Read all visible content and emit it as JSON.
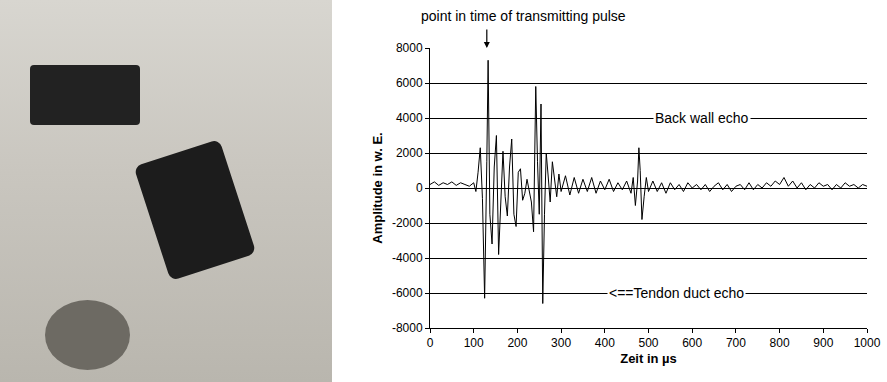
{
  "chart_data": {
    "type": "line",
    "x_label": "Zeit in µs",
    "y_label": "Amplitude in w. E.",
    "annotations": [
      {
        "text": "point in time of transmitting pulse",
        "x": 130,
        "y": 8000
      },
      {
        "text": "Back wall echo",
        "x": 623,
        "y": 4000
      },
      {
        "text": "<==Tendon duct echo",
        "x": 565,
        "y": -6000
      }
    ],
    "x": [
      0,
      10,
      20,
      30,
      40,
      50,
      60,
      70,
      80,
      90,
      100,
      105,
      110,
      115,
      120,
      125,
      130,
      133,
      137,
      142,
      147,
      152,
      157,
      162,
      167,
      172,
      177,
      182,
      187,
      192,
      197,
      202,
      207,
      212,
      217,
      222,
      227,
      232,
      237,
      242,
      246,
      250,
      254,
      258,
      262,
      266,
      270,
      275,
      280,
      285,
      290,
      295,
      300,
      310,
      320,
      330,
      340,
      350,
      360,
      370,
      380,
      390,
      400,
      410,
      420,
      430,
      440,
      450,
      460,
      465,
      470,
      475,
      478,
      481,
      485,
      490,
      495,
      500,
      510,
      520,
      530,
      540,
      550,
      560,
      570,
      580,
      590,
      600,
      610,
      620,
      630,
      640,
      650,
      660,
      670,
      680,
      690,
      700,
      710,
      720,
      730,
      740,
      750,
      760,
      770,
      780,
      790,
      800,
      810,
      820,
      830,
      840,
      850,
      860,
      870,
      880,
      890,
      900,
      910,
      920,
      930,
      940,
      950,
      960,
      970,
      980,
      990,
      1000
    ],
    "values": [
      200,
      350,
      150,
      300,
      200,
      350,
      150,
      300,
      200,
      100,
      300,
      -200,
      900,
      2300,
      -600,
      -6300,
      1500,
      7300,
      -1500,
      -3200,
      1200,
      3000,
      -3800,
      -1000,
      2100,
      -500,
      -1600,
      1200,
      2800,
      -1500,
      -2200,
      900,
      1100,
      -700,
      -300,
      500,
      -200,
      -800,
      -2500,
      5800,
      1500,
      -1500,
      4800,
      -6600,
      -1500,
      2000,
      800,
      -800,
      1500,
      300,
      -500,
      800,
      -200,
      700,
      -400,
      600,
      -300,
      500,
      -200,
      600,
      -300,
      400,
      -100,
      500,
      -200,
      300,
      -100,
      400,
      -300,
      600,
      -1000,
      400,
      2300,
      1000,
      -1800,
      -500,
      600,
      -200,
      400,
      -200,
      300,
      -300,
      300,
      -100,
      200,
      -200,
      300,
      0,
      200,
      -100,
      200,
      -200,
      100,
      300,
      -100,
      200,
      -200,
      100,
      200,
      -100,
      300,
      -100,
      200,
      0,
      300,
      100,
      400,
      200,
      600,
      100,
      400,
      0,
      300,
      -100,
      200,
      0,
      300,
      100,
      200,
      -100,
      200,
      0,
      300,
      100,
      200,
      0,
      200,
      100
    ],
    "color": "#000000",
    "xlim": [
      0,
      1000
    ],
    "xticks": [
      0,
      100,
      200,
      300,
      400,
      500,
      600,
      700,
      800,
      900,
      1000
    ],
    "ylim": [
      -8000,
      8000
    ],
    "yticks": [
      -8000,
      -6000,
      -4000,
      -2000,
      0,
      2000,
      4000,
      6000,
      8000
    ],
    "grid": true
  }
}
